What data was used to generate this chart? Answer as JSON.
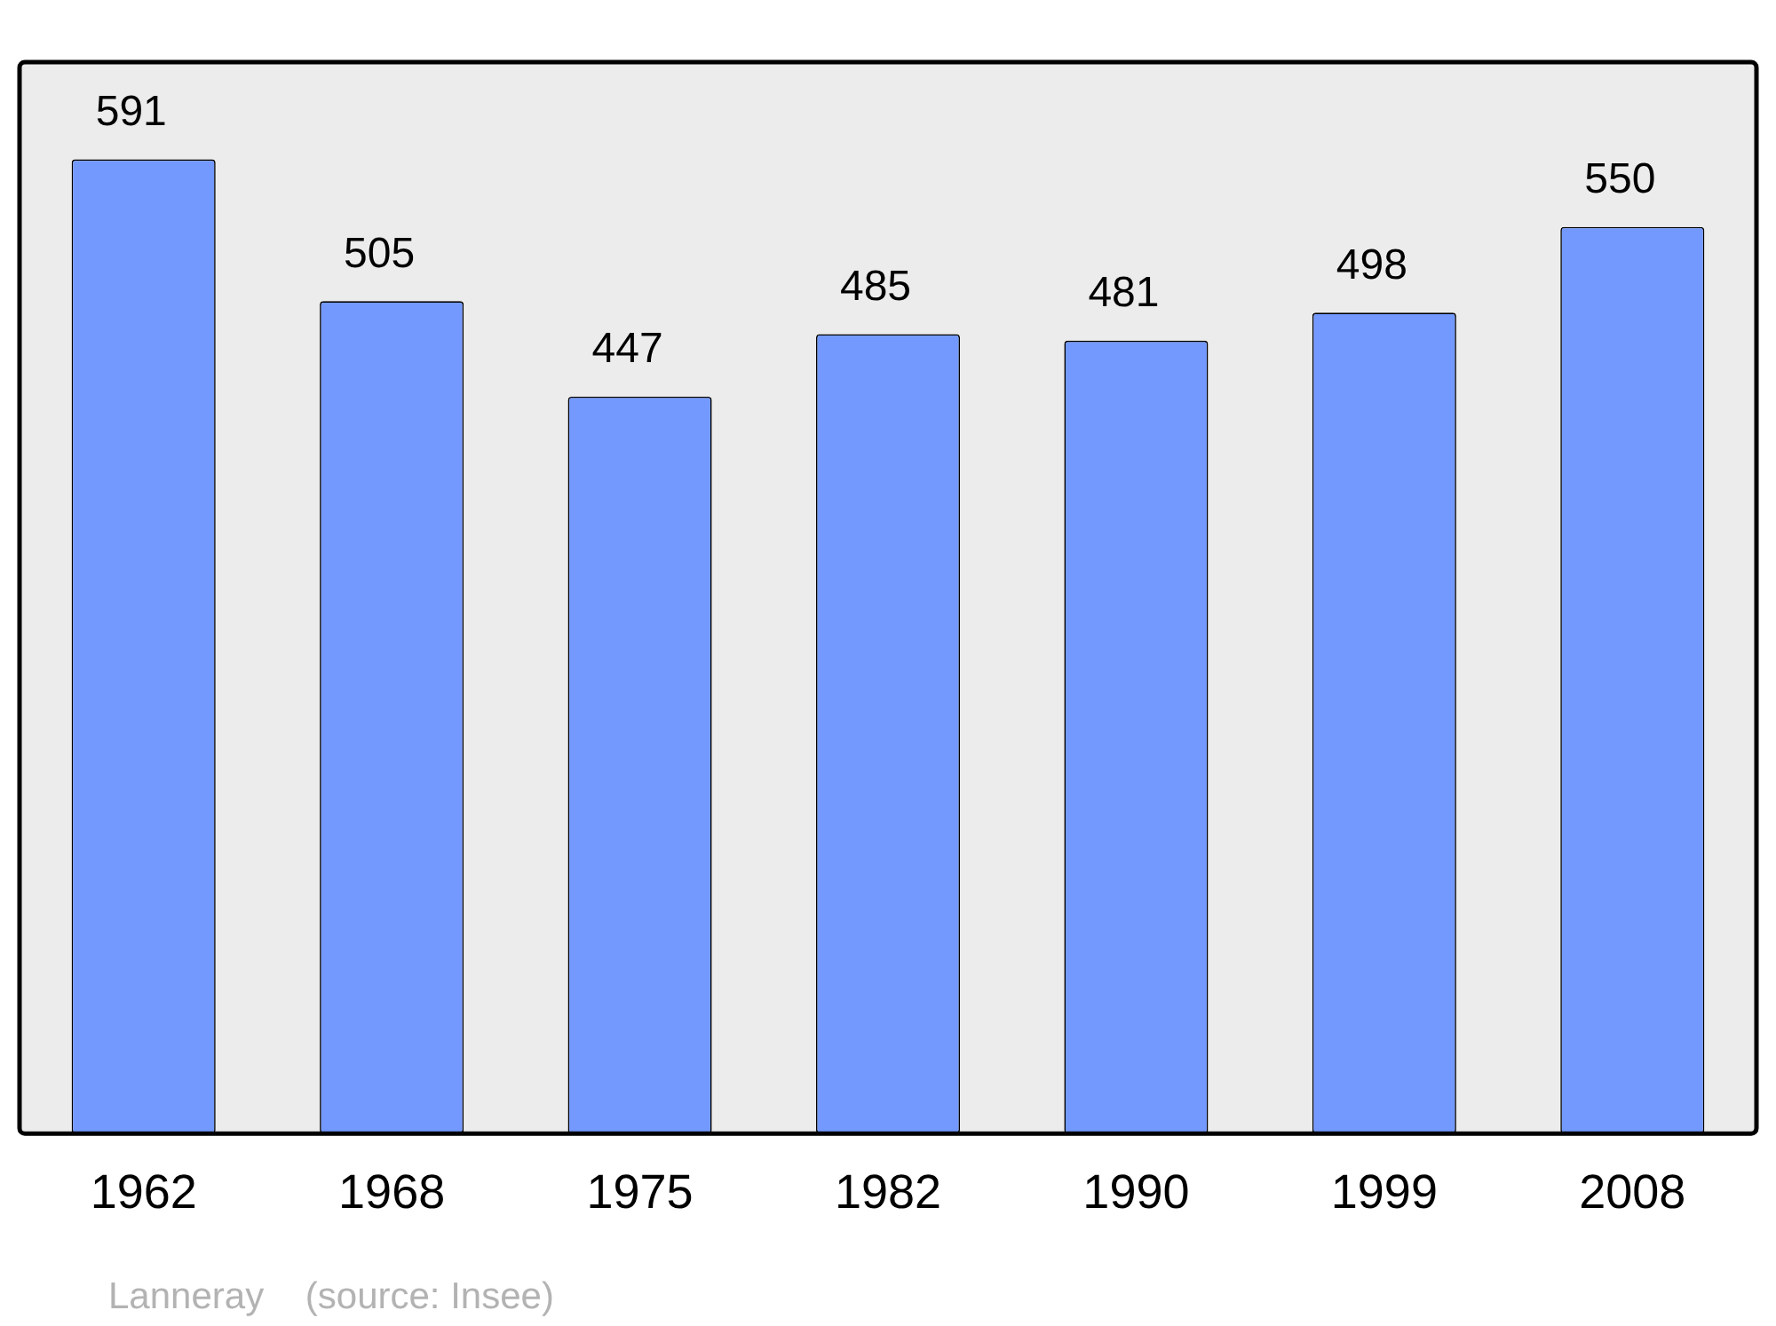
{
  "chart_data": {
    "type": "bar",
    "categories": [
      "1962",
      "1968",
      "1975",
      "1982",
      "1990",
      "1999",
      "2008"
    ],
    "values": [
      591,
      505,
      447,
      485,
      481,
      498,
      550
    ],
    "color": "#7399ff",
    "ylim": [
      0,
      650
    ],
    "tick_labels": "x",
    "data_labels": true,
    "grid": false,
    "legend": false,
    "annotations": [
      "Lanneray    (source: Insee)"
    ]
  }
}
